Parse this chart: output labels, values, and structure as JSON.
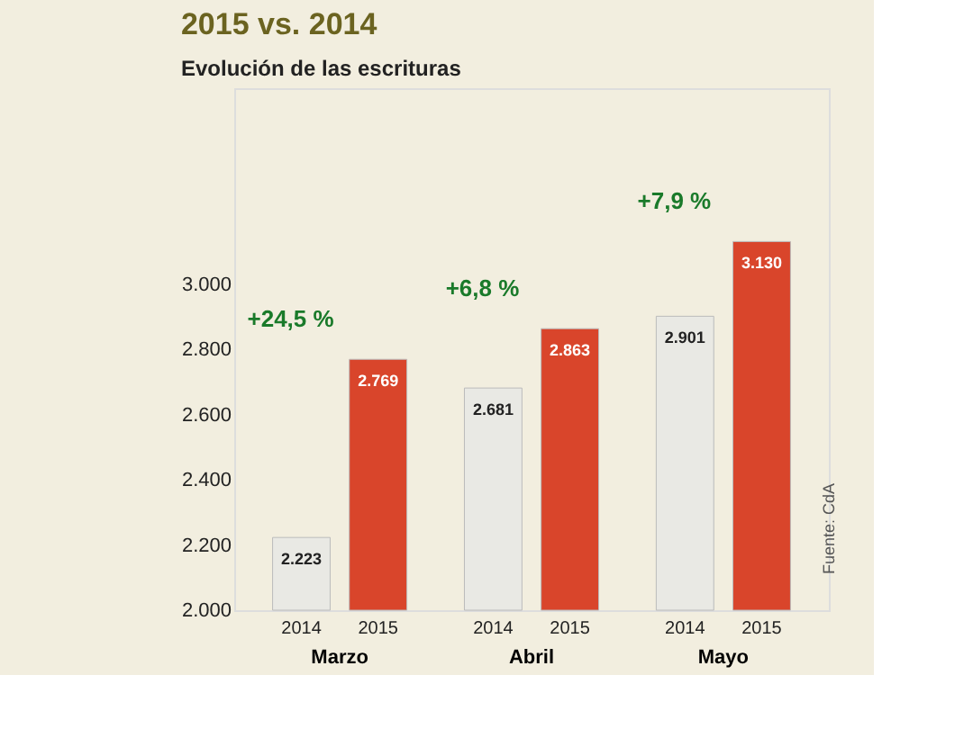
{
  "chart_data": {
    "type": "bar",
    "title": "2015 vs. 2014",
    "subtitle": "Evolución de las escrituras",
    "categories": [
      "Marzo",
      "Abril",
      "Mayo"
    ],
    "series": [
      {
        "name": "2014",
        "color": "#e9e9e4",
        "values": [
          2223,
          2681,
          2901
        ],
        "value_labels": [
          "2.223",
          "2.681",
          "2.901"
        ]
      },
      {
        "name": "2015",
        "color": "#d9452b",
        "values": [
          2769,
          2863,
          3130
        ],
        "value_labels": [
          "2.769",
          "2.863",
          "3.130"
        ]
      }
    ],
    "ylim": [
      2000,
      3600
    ],
    "yticks": [
      {
        "value": 2000,
        "label": "2.000"
      },
      {
        "value": 2200,
        "label": "2.200"
      },
      {
        "value": 2400,
        "label": "2.400"
      },
      {
        "value": 2600,
        "label": "2.600"
      },
      {
        "value": 2800,
        "label": "2.800"
      },
      {
        "value": 3000,
        "label": "3.000"
      }
    ],
    "grid": false,
    "legend": false,
    "annotations": [
      "+24,5 %",
      "+6,8 %",
      "+7,9 %",
      "Fuente: CdA"
    ]
  }
}
